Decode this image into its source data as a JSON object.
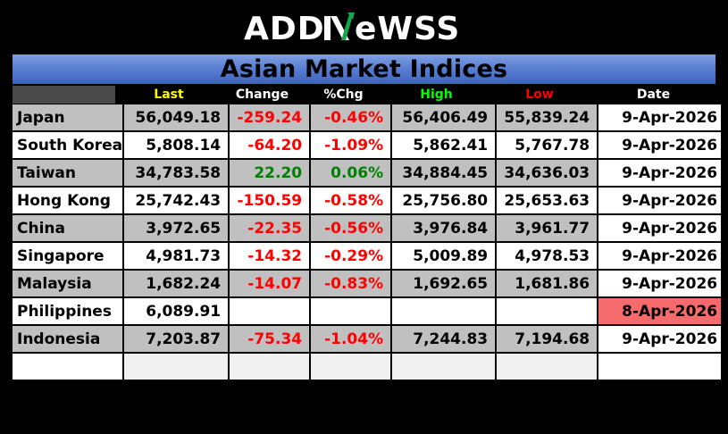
{
  "logo": {
    "text_left": "ADD",
    "text_mid": "N",
    "text_right": "eWSS"
  },
  "title": "Asian Market Indices",
  "columns": {
    "last": "Last",
    "change": "Change",
    "pct": "%Chg",
    "high": "High",
    "low": "Low",
    "date": "Date"
  },
  "colors": {
    "header_last": "#ffff00",
    "header_high": "#00ff00",
    "header_low": "#ff0000",
    "negative": "#ff0000",
    "positive": "#008000",
    "stale_date": "#f56b6b"
  },
  "rows": [
    {
      "name": "Japan",
      "last": "56,049.18",
      "change": "-259.24",
      "pct": "-0.46%",
      "high": "56,406.49",
      "low": "55,839.24",
      "date": "9-Apr-2026"
    },
    {
      "name": "South Korea",
      "last": "5,808.14",
      "change": "-64.20",
      "pct": "-1.09%",
      "high": "5,862.41",
      "low": "5,767.78",
      "date": "9-Apr-2026"
    },
    {
      "name": "Taiwan",
      "last": "34,783.58",
      "change": "22.20",
      "pct": "0.06%",
      "high": "34,884.45",
      "low": "34,636.03",
      "date": "9-Apr-2026"
    },
    {
      "name": "Hong Kong",
      "last": "25,742.43",
      "change": "-150.59",
      "pct": "-0.58%",
      "high": "25,756.80",
      "low": "25,653.63",
      "date": "9-Apr-2026"
    },
    {
      "name": "China",
      "last": "3,972.65",
      "change": "-22.35",
      "pct": "-0.56%",
      "high": "3,976.84",
      "low": "3,961.77",
      "date": "9-Apr-2026"
    },
    {
      "name": "Singapore",
      "last": "4,981.73",
      "change": "-14.32",
      "pct": "-0.29%",
      "high": "5,009.89",
      "low": "4,978.53",
      "date": "9-Apr-2026"
    },
    {
      "name": "Malaysia",
      "last": "1,682.24",
      "change": "-14.07",
      "pct": "-0.83%",
      "high": "1,692.65",
      "low": "1,681.86",
      "date": "9-Apr-2026"
    },
    {
      "name": "Philippines",
      "last": "6,089.91",
      "change": "",
      "pct": "",
      "high": "",
      "low": "",
      "date": "8-Apr-2026"
    },
    {
      "name": "Indonesia",
      "last": "7,203.87",
      "change": "-75.34",
      "pct": "-1.04%",
      "high": "7,244.83",
      "low": "7,194.68",
      "date": "9-Apr-2026"
    }
  ]
}
